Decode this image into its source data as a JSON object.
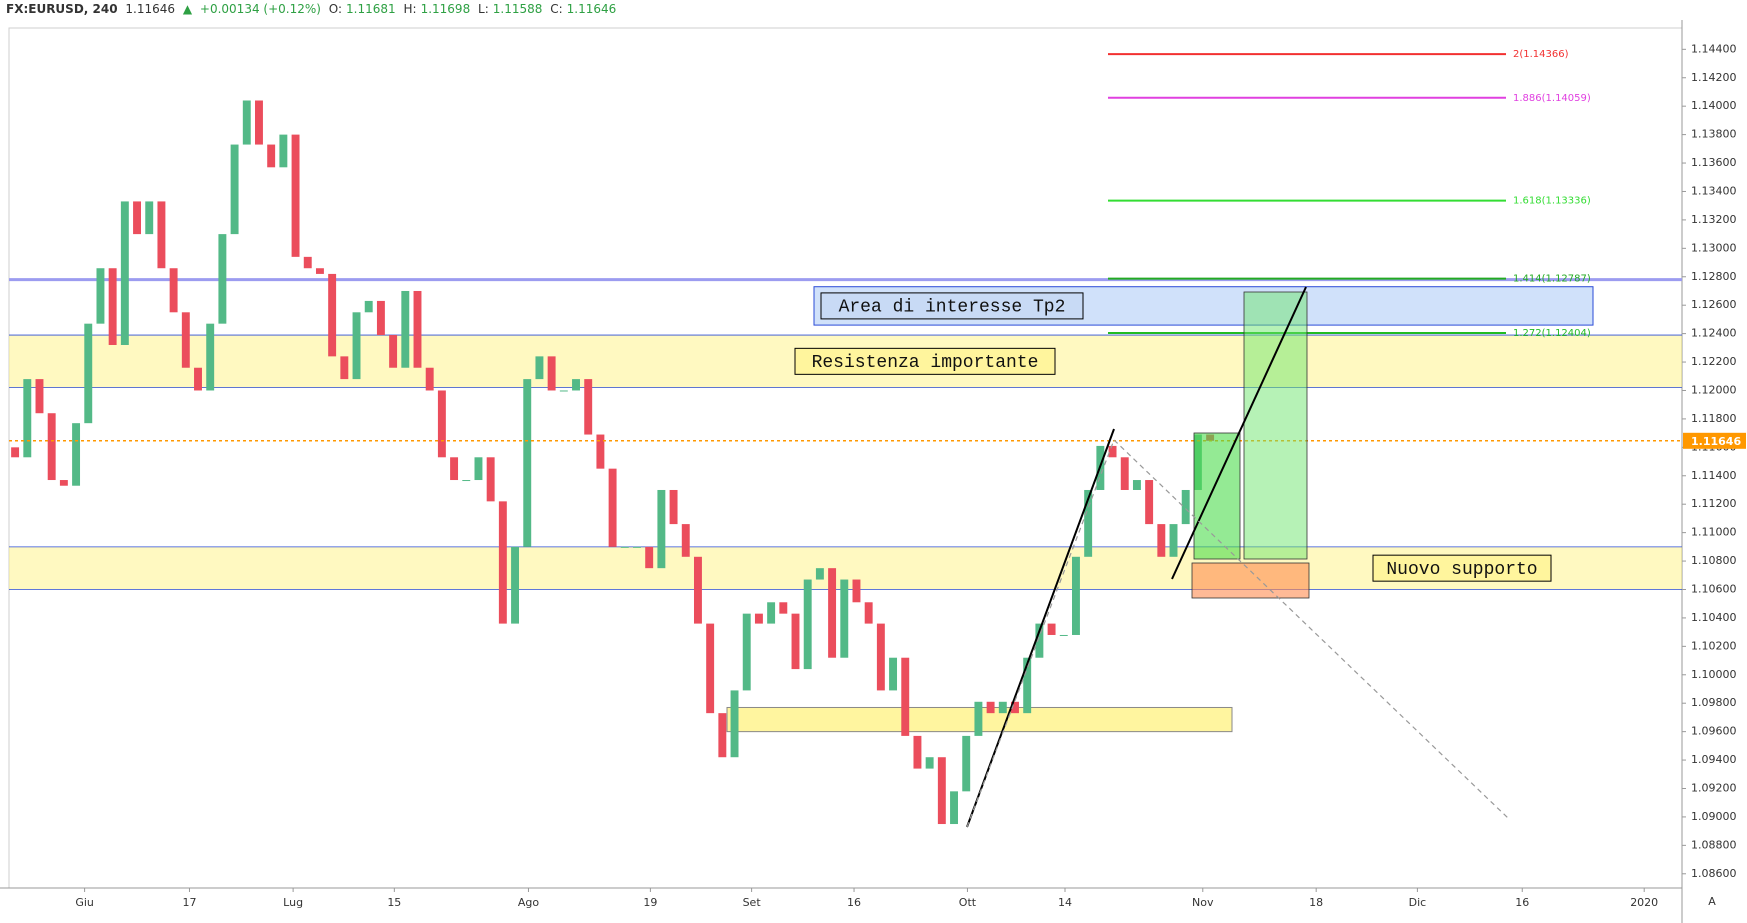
{
  "header": {
    "symbol": "FX:EURUSD, 240",
    "last": "1.11646",
    "arrow": "▲",
    "change": "+0.00134 (+0.12%)",
    "o_label": "O:",
    "o": "1.11681",
    "h_label": "H:",
    "h": "1.11698",
    "l_label": "L:",
    "l": "1.11588",
    "c_label": "C:",
    "c": "1.11646"
  },
  "auto_button": "A",
  "chart_data": {
    "type": "candlestick",
    "up_color": "#53b987",
    "down_color": "#eb4d5c",
    "open": 1.116,
    "close": [
      1.1153,
      1.1208,
      1.1184,
      1.1137,
      1.1133,
      1.1177,
      1.1247,
      1.1286,
      1.1232,
      1.1333,
      1.131,
      1.1333,
      1.1286,
      1.1255,
      1.1216,
      1.12,
      1.1247,
      1.131,
      1.1373,
      1.1404,
      1.1373,
      1.1357,
      1.138,
      1.1294,
      1.1286,
      1.1282,
      1.1224,
      1.1208,
      1.1255,
      1.1263,
      1.1239,
      1.1216,
      1.127,
      1.1216,
      1.12,
      1.1153,
      1.1137,
      1.1137,
      1.1153,
      1.1122,
      1.1036,
      1.109,
      1.1208,
      1.1224,
      1.12,
      1.12,
      1.1208,
      1.1169,
      1.1145,
      1.109,
      1.109,
      1.109,
      1.1075,
      1.113,
      1.1106,
      1.1083,
      1.1036,
      1.0973,
      1.0942,
      1.0989,
      1.1043,
      1.1036,
      1.1051,
      1.1043,
      1.1004,
      1.1067,
      1.1075,
      1.1012,
      1.1067,
      1.1051,
      1.1036,
      1.0989,
      1.1012,
      1.0957,
      1.0934,
      1.0942,
      1.0895,
      1.0918,
      1.0957,
      1.0981,
      1.0973,
      1.0981,
      1.0973,
      1.1012,
      1.1036,
      1.1028,
      1.1028,
      1.1083,
      1.113,
      1.1161,
      1.1153,
      1.113,
      1.1137,
      1.1106,
      1.1083,
      1.1106,
      1.113,
      1.1169,
      1.11646
    ],
    "xlim": [
      -0.5,
      136.7
    ],
    "xticks": [
      {
        "value": 5.7,
        "label": "Giu"
      },
      {
        "value": 14.3,
        "label": "17"
      },
      {
        "value": 22.8,
        "label": "Lug"
      },
      {
        "value": 31.1,
        "label": "15"
      },
      {
        "value": 42.1,
        "label": "Ago"
      },
      {
        "value": 52.1,
        "label": "19"
      },
      {
        "value": 60.4,
        "label": "Set"
      },
      {
        "value": 68.8,
        "label": "16"
      },
      {
        "value": 78.1,
        "label": "Ott"
      },
      {
        "value": 86.1,
        "label": "14"
      },
      {
        "value": 97.4,
        "label": "Nov"
      },
      {
        "value": 106.7,
        "label": "18"
      },
      {
        "value": 115,
        "label": "Dic"
      },
      {
        "value": 123.6,
        "label": "16"
      },
      {
        "value": 133.6,
        "label": "2020"
      }
    ],
    "ylim": [
      1.085,
      1.1455
    ],
    "yticks": [
      {
        "value": 1.086,
        "label": "1.08600"
      },
      {
        "value": 1.088,
        "label": "1.08800"
      },
      {
        "value": 1.09,
        "label": "1.09000"
      },
      {
        "value": 1.092,
        "label": "1.09200"
      },
      {
        "value": 1.094,
        "label": "1.09400"
      },
      {
        "value": 1.096,
        "label": "1.09600"
      },
      {
        "value": 1.098,
        "label": "1.09800"
      },
      {
        "value": 1.1,
        "label": "1.10000"
      },
      {
        "value": 1.102,
        "label": "1.10200"
      },
      {
        "value": 1.104,
        "label": "1.10400"
      },
      {
        "value": 1.106,
        "label": "1.10600"
      },
      {
        "value": 1.108,
        "label": "1.10800"
      },
      {
        "value": 1.11,
        "label": "1.11000"
      },
      {
        "value": 1.112,
        "label": "1.11200"
      },
      {
        "value": 1.114,
        "label": "1.11400"
      },
      {
        "value": 1.116,
        "label": "1.11600"
      },
      {
        "value": 1.118,
        "label": "1.11800"
      },
      {
        "value": 1.12,
        "label": "1.12000"
      },
      {
        "value": 1.122,
        "label": "1.12200"
      },
      {
        "value": 1.124,
        "label": "1.12400"
      },
      {
        "value": 1.126,
        "label": "1.12600"
      },
      {
        "value": 1.128,
        "label": "1.12800"
      },
      {
        "value": 1.13,
        "label": "1.13000"
      },
      {
        "value": 1.132,
        "label": "1.13200"
      },
      {
        "value": 1.134,
        "label": "1.13400"
      },
      {
        "value": 1.136,
        "label": "1.13600"
      },
      {
        "value": 1.138,
        "label": "1.13800"
      },
      {
        "value": 1.14,
        "label": "1.14000"
      },
      {
        "value": 1.142,
        "label": "1.14200"
      },
      {
        "value": 1.144,
        "label": "1.14400"
      }
    ],
    "last_price": 1.11646,
    "last_price_color": "#ff9800",
    "horizontal_line": {
      "value": 1.1278,
      "color": "#9c9cf0"
    },
    "fib_levels": [
      {
        "value": 1.14366,
        "label": "2(1.14366)",
        "color": "#f23030"
      },
      {
        "value": 1.14059,
        "label": "1.886(1.14059)",
        "color": "#e040e0"
      },
      {
        "value": 1.13336,
        "label": "1.618(1.13336)",
        "color": "#33dd33"
      },
      {
        "value": 1.12787,
        "label": "1.414(1.12787)",
        "color": "#22aa22"
      },
      {
        "value": 1.12404,
        "label": "1.272(1.12404)",
        "color": "#22bb22"
      }
    ],
    "zones": [
      {
        "label": "Resistenza importante",
        "low": 1.1202,
        "high": 1.1239
      },
      {
        "label": "Area di interesse Tp2",
        "low": 1.1246,
        "high": 1.1273
      },
      {
        "label": "Nuovo supporto",
        "low": 1.106,
        "high": 1.109
      },
      {
        "low": 1.096,
        "high": 1.0977
      }
    ]
  }
}
